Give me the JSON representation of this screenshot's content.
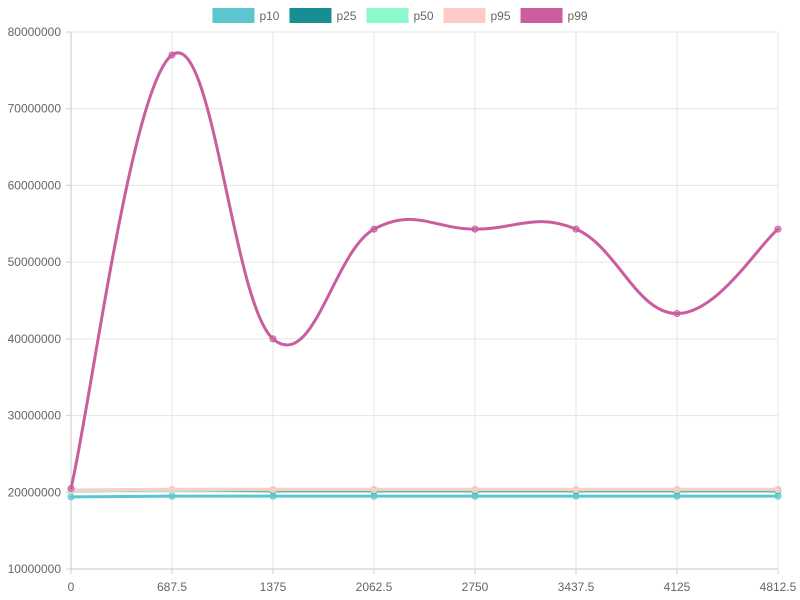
{
  "chart_data": {
    "type": "line",
    "x": [
      0,
      687.5,
      1375,
      2062.5,
      2750,
      3437.5,
      4125,
      4812.5
    ],
    "x_tick_labels": [
      "0",
      "687.5",
      "1375",
      "2062.5",
      "2750",
      "3437.5",
      "4125",
      "4812.5"
    ],
    "y_tick_labels": [
      "10000000",
      "20000000",
      "30000000",
      "40000000",
      "50000000",
      "60000000",
      "70000000",
      "80000000"
    ],
    "xlim": [
      0,
      4812.5
    ],
    "ylim": [
      10000000,
      80000000
    ],
    "grid": true,
    "legend_position": "top",
    "series": [
      {
        "name": "p10",
        "color": "#5bc6cf",
        "values": [
          19400000,
          19500000,
          19500000,
          19500000,
          19500000,
          19500000,
          19500000,
          19500000
        ]
      },
      {
        "name": "p25",
        "color": "#168e93",
        "values": [
          20200000,
          20300000,
          20200000,
          20200000,
          20200000,
          20200000,
          20200000,
          20200000
        ]
      },
      {
        "name": "p50",
        "color": "#8cf9cc",
        "values": [
          20200000,
          20300000,
          20300000,
          20300000,
          20300000,
          20300000,
          20300000,
          20300000
        ]
      },
      {
        "name": "p95",
        "color": "#ffcaca",
        "values": [
          20300000,
          20400000,
          20400000,
          20400000,
          20400000,
          20400000,
          20400000,
          20400000
        ]
      },
      {
        "name": "p99",
        "color": "#c95d9e",
        "values": [
          20500000,
          77000000,
          40000000,
          54300000,
          54300000,
          54300000,
          43300000,
          54300000
        ]
      }
    ]
  }
}
